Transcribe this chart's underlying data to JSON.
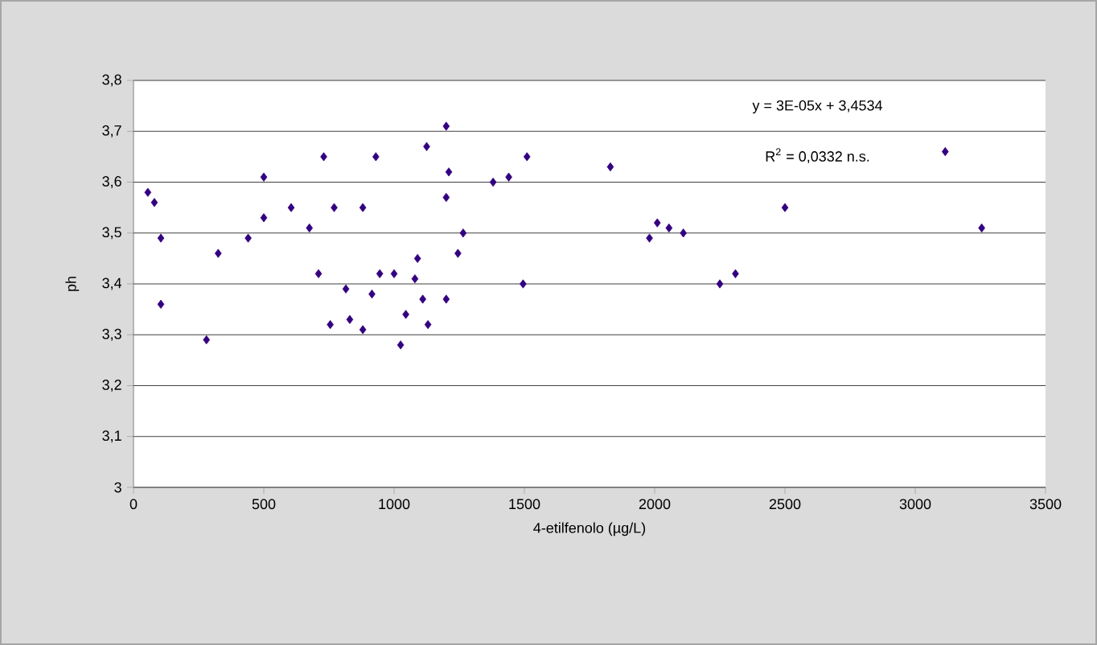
{
  "chart_data": {
    "type": "scatter",
    "xlabel": "4-etilfenolo (µg/L)",
    "ylabel": "ph",
    "x": [
      55,
      80,
      105,
      105,
      280,
      325,
      440,
      500,
      500,
      605,
      675,
      710,
      730,
      755,
      770,
      815,
      830,
      880,
      880,
      915,
      930,
      945,
      1000,
      1025,
      1045,
      1080,
      1090,
      1110,
      1125,
      1130,
      1200,
      1200,
      1200,
      1210,
      1245,
      1265,
      1380,
      1440,
      1495,
      1510,
      1830,
      1980,
      2010,
      2055,
      2110,
      2250,
      2310,
      2500,
      3115,
      3255
    ],
    "values": [
      3.58,
      3.56,
      3.49,
      3.36,
      3.29,
      3.46,
      3.49,
      3.61,
      3.53,
      3.55,
      3.51,
      3.42,
      3.65,
      3.32,
      3.55,
      3.39,
      3.33,
      3.31,
      3.55,
      3.38,
      3.65,
      3.42,
      3.42,
      3.28,
      3.34,
      3.41,
      3.45,
      3.37,
      3.67,
      3.32,
      3.57,
      3.37,
      3.71,
      3.62,
      3.46,
      3.5,
      3.6,
      3.61,
      3.4,
      3.65,
      3.63,
      3.49,
      3.52,
      3.51,
      3.5,
      3.4,
      3.42,
      3.55,
      3.66,
      3.51
    ],
    "color": "#330080",
    "marker": "diamond",
    "xlim": [
      0,
      3500
    ],
    "xticks": [
      0,
      500,
      1000,
      1500,
      2000,
      2500,
      3000,
      3500
    ],
    "ylim": [
      3,
      3.8
    ],
    "yticks": [
      3,
      {
        "value": 3.1,
        "label": "3,1"
      },
      {
        "value": 3.2,
        "label": "3,2"
      },
      {
        "value": 3.3,
        "label": "3,3"
      },
      {
        "value": 3.4,
        "label": "3,4"
      },
      {
        "value": 3.5,
        "label": "3,5"
      },
      {
        "value": 3.6,
        "label": "3,6"
      },
      {
        "value": 3.7,
        "label": "3,7"
      },
      {
        "value": 3.8,
        "label": "3,8"
      }
    ],
    "grid": "y",
    "annotations": [
      "y = 3E-05x + 3,4534",
      "R$^{2}$ = 0,0332 n.s."
    ]
  }
}
